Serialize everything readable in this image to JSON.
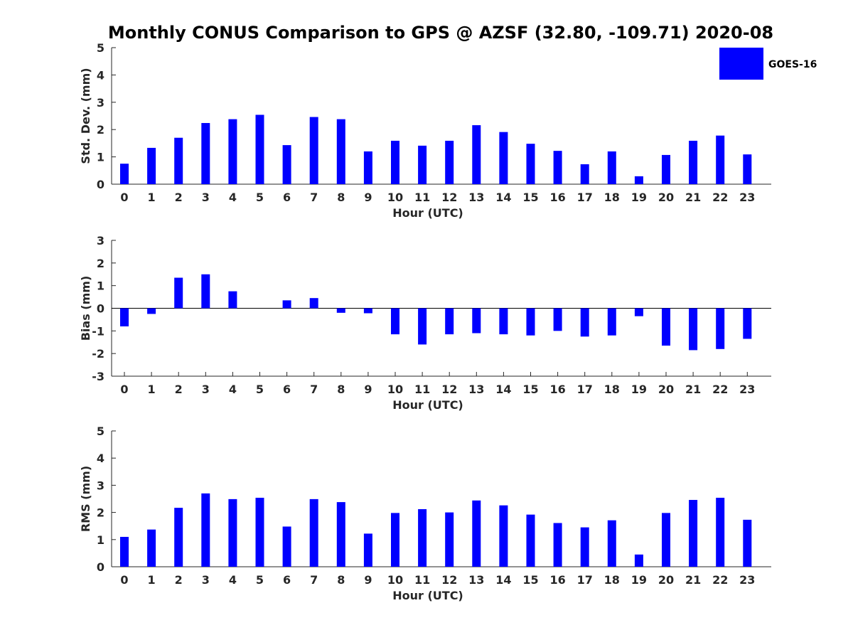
{
  "title": "Monthly CONUS Comparison to GPS @ AZSF (32.80, -109.71) 2020-08",
  "legend": {
    "label": "GOES-16",
    "color": "#0000ff"
  },
  "chart_data": [
    {
      "type": "bar",
      "name": "std-dev",
      "xlabel": "Hour (UTC)",
      "ylabel": "Std. Dev. (mm)",
      "ylim": [
        0,
        5
      ],
      "yticks": [
        "0",
        "1",
        "2",
        "3",
        "4",
        "5"
      ],
      "categories": [
        "0",
        "1",
        "2",
        "3",
        "4",
        "5",
        "6",
        "7",
        "8",
        "9",
        "10",
        "11",
        "12",
        "13",
        "14",
        "15",
        "16",
        "17",
        "18",
        "19",
        "20",
        "21",
        "22",
        "23"
      ],
      "series": [
        {
          "name": "GOES-16",
          "color": "#0000ff",
          "values": [
            0.75,
            1.33,
            1.7,
            2.24,
            2.38,
            2.54,
            1.43,
            2.46,
            2.38,
            1.2,
            1.59,
            1.41,
            1.59,
            2.16,
            1.91,
            1.48,
            1.22,
            0.73,
            1.2,
            0.29,
            1.07,
            1.59,
            1.78,
            1.09
          ]
        }
      ]
    },
    {
      "type": "bar",
      "name": "bias",
      "xlabel": "Hour (UTC)",
      "ylabel": "Bias (mm)",
      "ylim": [
        -3,
        3
      ],
      "yticks": [
        "-3",
        "-2",
        "-1",
        "0",
        "1",
        "2",
        "3"
      ],
      "categories": [
        "0",
        "1",
        "2",
        "3",
        "4",
        "5",
        "6",
        "7",
        "8",
        "9",
        "10",
        "11",
        "12",
        "13",
        "14",
        "15",
        "16",
        "17",
        "18",
        "19",
        "20",
        "21",
        "22",
        "23"
      ],
      "series": [
        {
          "name": "GOES-16",
          "color": "#0000ff",
          "values": [
            -0.8,
            -0.25,
            1.35,
            1.5,
            0.75,
            0.0,
            0.35,
            0.45,
            -0.2,
            -0.22,
            -1.15,
            -1.6,
            -1.15,
            -1.1,
            -1.15,
            -1.2,
            -1.0,
            -1.25,
            -1.2,
            -0.35,
            -1.65,
            -1.85,
            -1.8,
            -1.35
          ]
        }
      ]
    },
    {
      "type": "bar",
      "name": "rms",
      "xlabel": "Hour (UTC)",
      "ylabel": "RMS (mm)",
      "ylim": [
        0,
        5
      ],
      "yticks": [
        "0",
        "1",
        "2",
        "3",
        "4",
        "5"
      ],
      "categories": [
        "0",
        "1",
        "2",
        "3",
        "4",
        "5",
        "6",
        "7",
        "8",
        "9",
        "10",
        "11",
        "12",
        "13",
        "14",
        "15",
        "16",
        "17",
        "18",
        "19",
        "20",
        "21",
        "22",
        "23"
      ],
      "series": [
        {
          "name": "GOES-16",
          "color": "#0000ff",
          "values": [
            1.1,
            1.37,
            2.17,
            2.7,
            2.49,
            2.54,
            1.48,
            2.49,
            2.38,
            1.22,
            1.98,
            2.12,
            2.0,
            2.44,
            2.26,
            1.92,
            1.61,
            1.45,
            1.71,
            0.45,
            1.98,
            2.46,
            2.54,
            1.73
          ]
        }
      ]
    }
  ]
}
